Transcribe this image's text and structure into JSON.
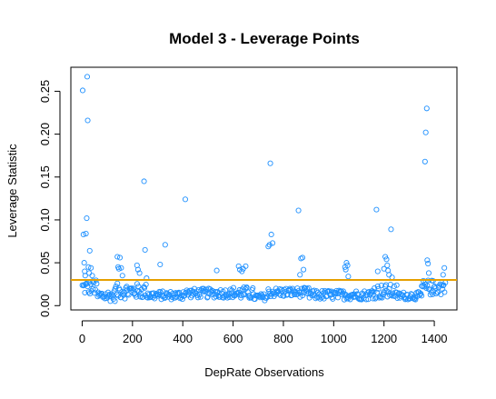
{
  "chart_data": {
    "type": "scatter",
    "title": "Model 3 - Leverage Points",
    "xlabel": "DepRate Observations",
    "ylabel": "Leverage Statistic",
    "xlim": [
      -45,
      1490
    ],
    "ylim": [
      -0.005,
      0.278
    ],
    "xticks": [
      0,
      200,
      400,
      600,
      800,
      1000,
      1200,
      1400
    ],
    "xtick_labels": [
      "0",
      "200",
      "400",
      "600",
      "800",
      "1000",
      "1200",
      "1400"
    ],
    "yticks": [
      0.0,
      0.05,
      0.1,
      0.15,
      0.2,
      0.25
    ],
    "ytick_labels": [
      "0.00",
      "0.05",
      "0.10",
      "0.15",
      "0.20",
      "0.25"
    ],
    "grid": false,
    "legend": "none",
    "point_color": "#1E90FF",
    "reference_line": {
      "y": 0.03,
      "color": "#E69F00"
    },
    "high_points": [
      {
        "x": 2,
        "y": 0.251
      },
      {
        "x": 5,
        "y": 0.083
      },
      {
        "x": 8,
        "y": 0.05
      },
      {
        "x": 12,
        "y": 0.035
      },
      {
        "x": 15,
        "y": 0.084
      },
      {
        "x": 18,
        "y": 0.102
      },
      {
        "x": 20,
        "y": 0.267
      },
      {
        "x": 22,
        "y": 0.216
      },
      {
        "x": 25,
        "y": 0.045
      },
      {
        "x": 30,
        "y": 0.064
      },
      {
        "x": 35,
        "y": 0.044
      },
      {
        "x": 10,
        "y": 0.04
      },
      {
        "x": 28,
        "y": 0.038
      },
      {
        "x": 40,
        "y": 0.035
      },
      {
        "x": 140,
        "y": 0.057
      },
      {
        "x": 143,
        "y": 0.045
      },
      {
        "x": 146,
        "y": 0.043
      },
      {
        "x": 150,
        "y": 0.056
      },
      {
        "x": 155,
        "y": 0.044
      },
      {
        "x": 160,
        "y": 0.035
      },
      {
        "x": 218,
        "y": 0.047
      },
      {
        "x": 222,
        "y": 0.042
      },
      {
        "x": 228,
        "y": 0.038
      },
      {
        "x": 246,
        "y": 0.145
      },
      {
        "x": 250,
        "y": 0.065
      },
      {
        "x": 256,
        "y": 0.032
      },
      {
        "x": 310,
        "y": 0.048
      },
      {
        "x": 330,
        "y": 0.071
      },
      {
        "x": 410,
        "y": 0.124
      },
      {
        "x": 535,
        "y": 0.041
      },
      {
        "x": 622,
        "y": 0.046
      },
      {
        "x": 627,
        "y": 0.042
      },
      {
        "x": 635,
        "y": 0.04
      },
      {
        "x": 640,
        "y": 0.043
      },
      {
        "x": 650,
        "y": 0.046
      },
      {
        "x": 740,
        "y": 0.069
      },
      {
        "x": 745,
        "y": 0.071
      },
      {
        "x": 748,
        "y": 0.166
      },
      {
        "x": 752,
        "y": 0.083
      },
      {
        "x": 757,
        "y": 0.073
      },
      {
        "x": 860,
        "y": 0.111
      },
      {
        "x": 870,
        "y": 0.055
      },
      {
        "x": 876,
        "y": 0.056
      },
      {
        "x": 880,
        "y": 0.042
      },
      {
        "x": 866,
        "y": 0.036
      },
      {
        "x": 1045,
        "y": 0.045
      },
      {
        "x": 1048,
        "y": 0.042
      },
      {
        "x": 1051,
        "y": 0.05
      },
      {
        "x": 1055,
        "y": 0.047
      },
      {
        "x": 1058,
        "y": 0.034
      },
      {
        "x": 1170,
        "y": 0.112
      },
      {
        "x": 1175,
        "y": 0.04
      },
      {
        "x": 1200,
        "y": 0.043
      },
      {
        "x": 1205,
        "y": 0.057
      },
      {
        "x": 1210,
        "y": 0.054
      },
      {
        "x": 1213,
        "y": 0.047
      },
      {
        "x": 1216,
        "y": 0.041
      },
      {
        "x": 1220,
        "y": 0.036
      },
      {
        "x": 1228,
        "y": 0.089
      },
      {
        "x": 1232,
        "y": 0.033
      },
      {
        "x": 1363,
        "y": 0.168
      },
      {
        "x": 1366,
        "y": 0.202
      },
      {
        "x": 1370,
        "y": 0.23
      },
      {
        "x": 1372,
        "y": 0.053
      },
      {
        "x": 1375,
        "y": 0.049
      },
      {
        "x": 1378,
        "y": 0.038
      },
      {
        "x": 1440,
        "y": 0.044
      },
      {
        "x": 1435,
        "y": 0.036
      }
    ],
    "baseline_bands": [
      {
        "x_start": 0,
        "x_end": 60,
        "low": 0.012,
        "high": 0.03
      },
      {
        "x_start": 60,
        "x_end": 130,
        "low": 0.005,
        "high": 0.018
      },
      {
        "x_start": 130,
        "x_end": 260,
        "low": 0.008,
        "high": 0.026
      },
      {
        "x_start": 260,
        "x_end": 400,
        "low": 0.007,
        "high": 0.017
      },
      {
        "x_start": 400,
        "x_end": 600,
        "low": 0.009,
        "high": 0.02
      },
      {
        "x_start": 600,
        "x_end": 680,
        "low": 0.007,
        "high": 0.022
      },
      {
        "x_start": 680,
        "x_end": 740,
        "low": 0.006,
        "high": 0.014
      },
      {
        "x_start": 740,
        "x_end": 900,
        "low": 0.01,
        "high": 0.021
      },
      {
        "x_start": 900,
        "x_end": 1150,
        "low": 0.007,
        "high": 0.018
      },
      {
        "x_start": 1150,
        "x_end": 1250,
        "low": 0.008,
        "high": 0.025
      },
      {
        "x_start": 1250,
        "x_end": 1350,
        "low": 0.007,
        "high": 0.016
      },
      {
        "x_start": 1350,
        "x_end": 1445,
        "low": 0.012,
        "high": 0.03
      }
    ]
  }
}
